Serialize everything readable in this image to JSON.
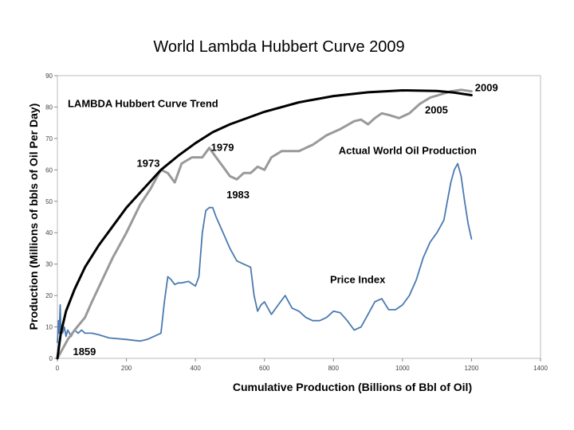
{
  "chart_data": {
    "type": "line",
    "title": "World Lambda Hubbert Curve 2009",
    "xlabel": "Cumulative Production (Billions of Bbl of Oil)",
    "ylabel": "Production (Millions of bbls of Oil Per Day)",
    "xlim": [
      0,
      1400
    ],
    "ylim": [
      0,
      90
    ],
    "xticks": [
      "0",
      "200",
      "400",
      "600",
      "800",
      "1000",
      "1200",
      "1400"
    ],
    "yticks": [
      "0",
      "10",
      "20",
      "30",
      "40",
      "50",
      "60",
      "70",
      "80",
      "90"
    ],
    "grid": false,
    "colors": {
      "trend": "#000000",
      "production": "#999999",
      "price": "#4a7ab0"
    },
    "series": [
      {
        "name": "LAMBDA Hubbert Curve Trend",
        "x": [
          0,
          10,
          25,
          50,
          80,
          120,
          160,
          200,
          250,
          300,
          350,
          400,
          450,
          500,
          600,
          700,
          800,
          900,
          1000,
          1100,
          1150,
          1200
        ],
        "y": [
          0,
          8,
          15,
          22,
          29,
          36,
          42,
          48,
          54,
          60,
          64.5,
          68.5,
          72,
          74.5,
          78.5,
          81.5,
          83.5,
          84.7,
          85.3,
          85.1,
          84.6,
          83.8
        ]
      },
      {
        "name": "Actual World Oil Production",
        "x": [
          0,
          10,
          20,
          30,
          50,
          80,
          100,
          130,
          160,
          200,
          240,
          270,
          290,
          300,
          320,
          340,
          360,
          390,
          420,
          440,
          460,
          480,
          500,
          520,
          540,
          560,
          580,
          600,
          620,
          650,
          680,
          700,
          740,
          780,
          820,
          860,
          880,
          900,
          920,
          940,
          960,
          990,
          1020,
          1050,
          1080,
          1110,
          1140,
          1170,
          1200
        ],
        "y": [
          0,
          2,
          4,
          6,
          9,
          13,
          18,
          25,
          32,
          40,
          49,
          54,
          58,
          60,
          59,
          56,
          62,
          64,
          64,
          67,
          64,
          61,
          58,
          57,
          59,
          59,
          61,
          60,
          64,
          66,
          66,
          66,
          68,
          71,
          73,
          75.5,
          76,
          74.5,
          76.5,
          78,
          77.5,
          76.5,
          78,
          81,
          83,
          84,
          85,
          85.5,
          85
        ]
      },
      {
        "name": "Price Index",
        "x": [
          0,
          3,
          5,
          8,
          10,
          15,
          20,
          25,
          30,
          40,
          50,
          60,
          70,
          80,
          100,
          120,
          150,
          200,
          240,
          260,
          280,
          300,
          310,
          320,
          330,
          340,
          350,
          360,
          380,
          400,
          410,
          420,
          430,
          440,
          450,
          460,
          480,
          500,
          520,
          540,
          560,
          570,
          580,
          590,
          600,
          620,
          640,
          660,
          680,
          700,
          720,
          740,
          760,
          780,
          800,
          820,
          840,
          860,
          880,
          900,
          920,
          940,
          960,
          980,
          1000,
          1020,
          1040,
          1060,
          1080,
          1100,
          1110,
          1120,
          1130,
          1140,
          1150,
          1160,
          1170,
          1180,
          1190,
          1200
        ],
        "y": [
          5,
          12,
          8,
          17,
          9,
          8,
          10,
          7,
          9,
          7,
          9,
          8,
          9,
          8,
          8,
          7.5,
          6.5,
          6,
          5.5,
          6,
          7,
          8,
          18,
          26,
          25,
          23.5,
          24,
          24,
          24.5,
          23,
          26,
          40,
          47,
          48,
          48,
          45,
          40,
          35,
          31,
          30,
          29,
          20,
          15,
          17,
          18,
          14,
          17,
          20,
          16,
          15,
          13,
          12,
          12,
          13,
          15,
          14.5,
          12,
          9,
          10,
          14,
          18,
          19,
          15.5,
          15.5,
          17,
          20,
          25,
          32,
          37,
          40,
          42,
          44,
          50,
          56,
          60,
          62,
          58,
          50,
          43,
          38
        ]
      }
    ],
    "annotations": [
      {
        "text": "LAMBDA Hubbert Curve Trend",
        "x": 30,
        "y": 80
      },
      {
        "text": "2009",
        "x": 1210,
        "y": 85
      },
      {
        "text": "2005",
        "x": 1065,
        "y": 78
      },
      {
        "text": "1979",
        "x": 445,
        "y": 66
      },
      {
        "text": "1973",
        "x": 230,
        "y": 61
      },
      {
        "text": "1983",
        "x": 490,
        "y": 51
      },
      {
        "text": "Actual World Oil Production",
        "x": 815,
        "y": 65
      },
      {
        "text": "Price Index",
        "x": 790,
        "y": 24
      },
      {
        "text": "1859",
        "x": 45,
        "y": 1
      }
    ]
  }
}
